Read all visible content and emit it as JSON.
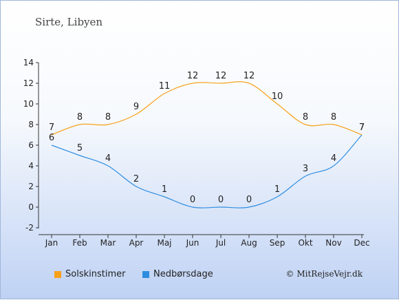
{
  "title": "Sirte, Libyen",
  "copyright": "© MitRejseVejr.dk",
  "colors": {
    "sun": "#f7a11a",
    "rain": "#2f8de0",
    "axis": "#333333"
  },
  "chart_data": {
    "type": "line",
    "categories": [
      "Jan",
      "Feb",
      "Mar",
      "Apr",
      "Maj",
      "Jun",
      "Jul",
      "Aug",
      "Sep",
      "Okt",
      "Nov",
      "Dec"
    ],
    "ylim": [
      -2,
      14
    ],
    "yticks": [
      -2,
      0,
      2,
      4,
      6,
      8,
      10,
      12,
      14
    ],
    "grid": false,
    "legend_placement": "bottom-left",
    "series": [
      {
        "name": "Solskinstimer",
        "color": "#f7a11a",
        "values": [
          7,
          8,
          8,
          9,
          11,
          12,
          12,
          12,
          10,
          8,
          8,
          7
        ]
      },
      {
        "name": "Nedbørsdage",
        "color": "#2f8de0",
        "values": [
          6,
          5,
          4,
          2,
          1,
          0,
          0,
          0,
          1,
          3,
          4,
          7
        ]
      }
    ]
  }
}
